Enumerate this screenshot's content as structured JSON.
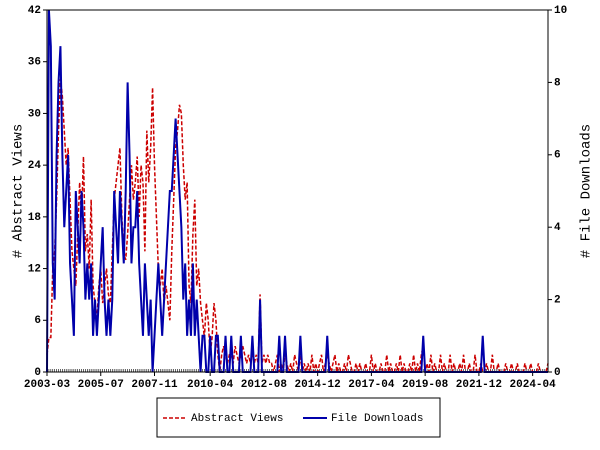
{
  "chart_data": {
    "type": "line",
    "y_label": "# Abstract Views",
    "y2_label": "# File Downloads",
    "categories": [
      "2003-03",
      null,
      null,
      null,
      null,
      null,
      null,
      null,
      null,
      null,
      null,
      null,
      null,
      null,
      null,
      null,
      null,
      null,
      null,
      null,
      null,
      null,
      null,
      null,
      null,
      null,
      null,
      null,
      "2005-07",
      null,
      null,
      null,
      null,
      null,
      null,
      null,
      null,
      null,
      null,
      null,
      null,
      null,
      null,
      null,
      null,
      null,
      null,
      null,
      null,
      null,
      null,
      null,
      null,
      null,
      null,
      null,
      "2007-11",
      null,
      null,
      null,
      null,
      null,
      null,
      null,
      null,
      null,
      null,
      null,
      null,
      null,
      null,
      null,
      null,
      null,
      null,
      null,
      null,
      null,
      null,
      null,
      null,
      null,
      null,
      null,
      null,
      "2010-04",
      null,
      null,
      null,
      null,
      null,
      null,
      null,
      null,
      null,
      null,
      null,
      null,
      null,
      null,
      null,
      null,
      null,
      null,
      null,
      null,
      null,
      null,
      null,
      null,
      null,
      null,
      null,
      "2012-08",
      null,
      null,
      null,
      null,
      null,
      null,
      null,
      null,
      null,
      null,
      null,
      null,
      null,
      null,
      null,
      null,
      null,
      null,
      null,
      null,
      null,
      null,
      null,
      null,
      null,
      null,
      null,
      "2014-12",
      null,
      null,
      null,
      null,
      null,
      null,
      null,
      null,
      null,
      null,
      null,
      null,
      null,
      null,
      null,
      null,
      null,
      null,
      null,
      null,
      null,
      null,
      null,
      null,
      null,
      null,
      null,
      "2017-04",
      null,
      null,
      null,
      null,
      null,
      null,
      null,
      null,
      null,
      null,
      null,
      null,
      null,
      null,
      null,
      null,
      null,
      null,
      null,
      null,
      null,
      null,
      null,
      null,
      null,
      null,
      null,
      "2019-08",
      null,
      null,
      null,
      null,
      null,
      null,
      null,
      null,
      null,
      null,
      null,
      null,
      null,
      null,
      null,
      null,
      null,
      null,
      null,
      null,
      null,
      null,
      null,
      null,
      null,
      null,
      null,
      "2021-12",
      null,
      null,
      null,
      null,
      null,
      null,
      null,
      null,
      null,
      null,
      null,
      null,
      null,
      null,
      null,
      null,
      null,
      null,
      null,
      null,
      null,
      null,
      null,
      null,
      null,
      null,
      null,
      "2024-04",
      null,
      null,
      null,
      null,
      null,
      null,
      null,
      null
    ],
    "series": [
      {
        "name": "Abstract Views",
        "color": "#cc0000",
        "axis": "y",
        "values": [
          2,
          4,
          4,
          12,
          14,
          20,
          28,
          34,
          32,
          28,
          24,
          26,
          20,
          14,
          12,
          10,
          16,
          22,
          18,
          25,
          14,
          16,
          12,
          20,
          10,
          8,
          6,
          10,
          12,
          8,
          10,
          12,
          9,
          8,
          14,
          20,
          22,
          24,
          26,
          18,
          14,
          13,
          16,
          20,
          24,
          20,
          22,
          25,
          18,
          24,
          22,
          14,
          28,
          22,
          26,
          33,
          24,
          18,
          12,
          10,
          12,
          8,
          10,
          8,
          6,
          14,
          20,
          26,
          28,
          31,
          30,
          24,
          20,
          22,
          10,
          8,
          16,
          20,
          10,
          12,
          8,
          6,
          4,
          8,
          6,
          2,
          4,
          8,
          6,
          2,
          0,
          2,
          3,
          2,
          1,
          2,
          2,
          1,
          3,
          2,
          1,
          2,
          3,
          2,
          1,
          2,
          1,
          2,
          1,
          2,
          1,
          9,
          1,
          2,
          1,
          2,
          1,
          1,
          0,
          1,
          2,
          0,
          1,
          0,
          2,
          1,
          0,
          1,
          0,
          2,
          1,
          0,
          2,
          0,
          1,
          0,
          1,
          0,
          2,
          0,
          1,
          0,
          1,
          2,
          0,
          1,
          2,
          1,
          0,
          1,
          2,
          0,
          1,
          0,
          0,
          1,
          0,
          2,
          1,
          0,
          0,
          1,
          0,
          1,
          0,
          0,
          1,
          0,
          0,
          2,
          0,
          1,
          0,
          0,
          1,
          0,
          0,
          2,
          0,
          1,
          0,
          0,
          1,
          0,
          2,
          0,
          1,
          0,
          0,
          1,
          0,
          2,
          0,
          1,
          0,
          2,
          3,
          0,
          1,
          0,
          2,
          0,
          1,
          0,
          0,
          2,
          0,
          1,
          0,
          0,
          2,
          0,
          1,
          0,
          0,
          1,
          0,
          2,
          0,
          0,
          1,
          0,
          0,
          2,
          0,
          0,
          1,
          0,
          0,
          1,
          0,
          0,
          2,
          0,
          0,
          1,
          0,
          0,
          0,
          1,
          0,
          0,
          1,
          0,
          0,
          1,
          0,
          0,
          0,
          1,
          0,
          0,
          1,
          0,
          0,
          0,
          1,
          0,
          0,
          0,
          0,
          1
        ]
      },
      {
        "name": "File Downloads",
        "color": "#0000aa",
        "axis": "y2",
        "values": [
          0,
          10,
          9,
          3,
          2,
          6,
          8,
          9,
          6,
          4,
          5,
          6,
          3,
          2,
          1,
          5,
          4,
          3,
          5,
          4,
          2,
          3,
          2,
          3,
          1,
          2,
          1,
          2,
          3,
          4,
          2,
          1,
          2,
          1,
          2,
          5,
          4,
          3,
          5,
          4,
          3,
          5,
          8,
          6,
          3,
          4,
          4,
          5,
          3,
          2,
          1,
          3,
          2,
          1,
          2,
          0,
          1,
          2,
          3,
          2,
          1,
          2,
          3,
          4,
          5,
          5,
          6,
          7,
          6,
          5,
          4,
          2,
          3,
          1,
          2,
          1,
          3,
          1,
          2,
          1,
          0,
          1,
          1,
          0,
          0,
          1,
          0,
          0,
          1,
          1,
          0,
          0,
          0,
          1,
          0,
          0,
          1,
          0,
          0,
          0,
          0,
          1,
          0,
          0,
          0,
          0,
          0,
          1,
          0,
          0,
          0,
          2,
          0,
          0,
          0,
          0,
          0,
          0,
          0,
          0,
          0,
          1,
          0,
          0,
          1,
          0,
          0,
          0,
          0,
          0,
          0,
          0,
          1,
          0,
          0,
          0,
          0,
          0,
          0,
          0,
          0,
          0,
          0,
          0,
          0,
          0,
          1,
          0,
          0,
          0,
          0,
          0,
          0,
          0,
          0,
          0,
          0,
          0,
          0,
          0,
          0,
          0,
          0,
          0,
          0,
          0,
          0,
          0,
          0,
          0,
          0,
          0,
          0,
          0,
          0,
          0,
          0,
          0,
          0,
          0,
          0,
          0,
          0,
          0,
          0,
          0,
          0,
          0,
          0,
          0,
          0,
          0,
          0,
          0,
          0,
          0,
          1,
          0,
          0,
          0,
          0,
          0,
          0,
          0,
          0,
          0,
          0,
          0,
          0,
          0,
          0,
          0,
          0,
          0,
          0,
          0,
          0,
          0,
          0,
          0,
          0,
          0,
          0,
          0,
          0,
          0,
          0,
          1,
          0,
          0,
          0,
          0,
          0,
          0,
          0,
          0,
          0,
          0,
          0,
          0,
          0,
          0,
          0,
          0,
          0,
          0,
          0,
          0,
          0,
          0,
          0,
          0,
          0,
          0,
          0,
          0,
          0,
          0,
          0,
          0,
          0,
          0
        ]
      }
    ],
    "ylim": [
      0,
      42
    ],
    "yticks": [
      0,
      6,
      12,
      18,
      24,
      30,
      36,
      42
    ],
    "y2lim": [
      0,
      10
    ],
    "y2ticks": [
      0,
      2,
      4,
      6,
      8,
      10
    ],
    "legend": "bottom"
  }
}
